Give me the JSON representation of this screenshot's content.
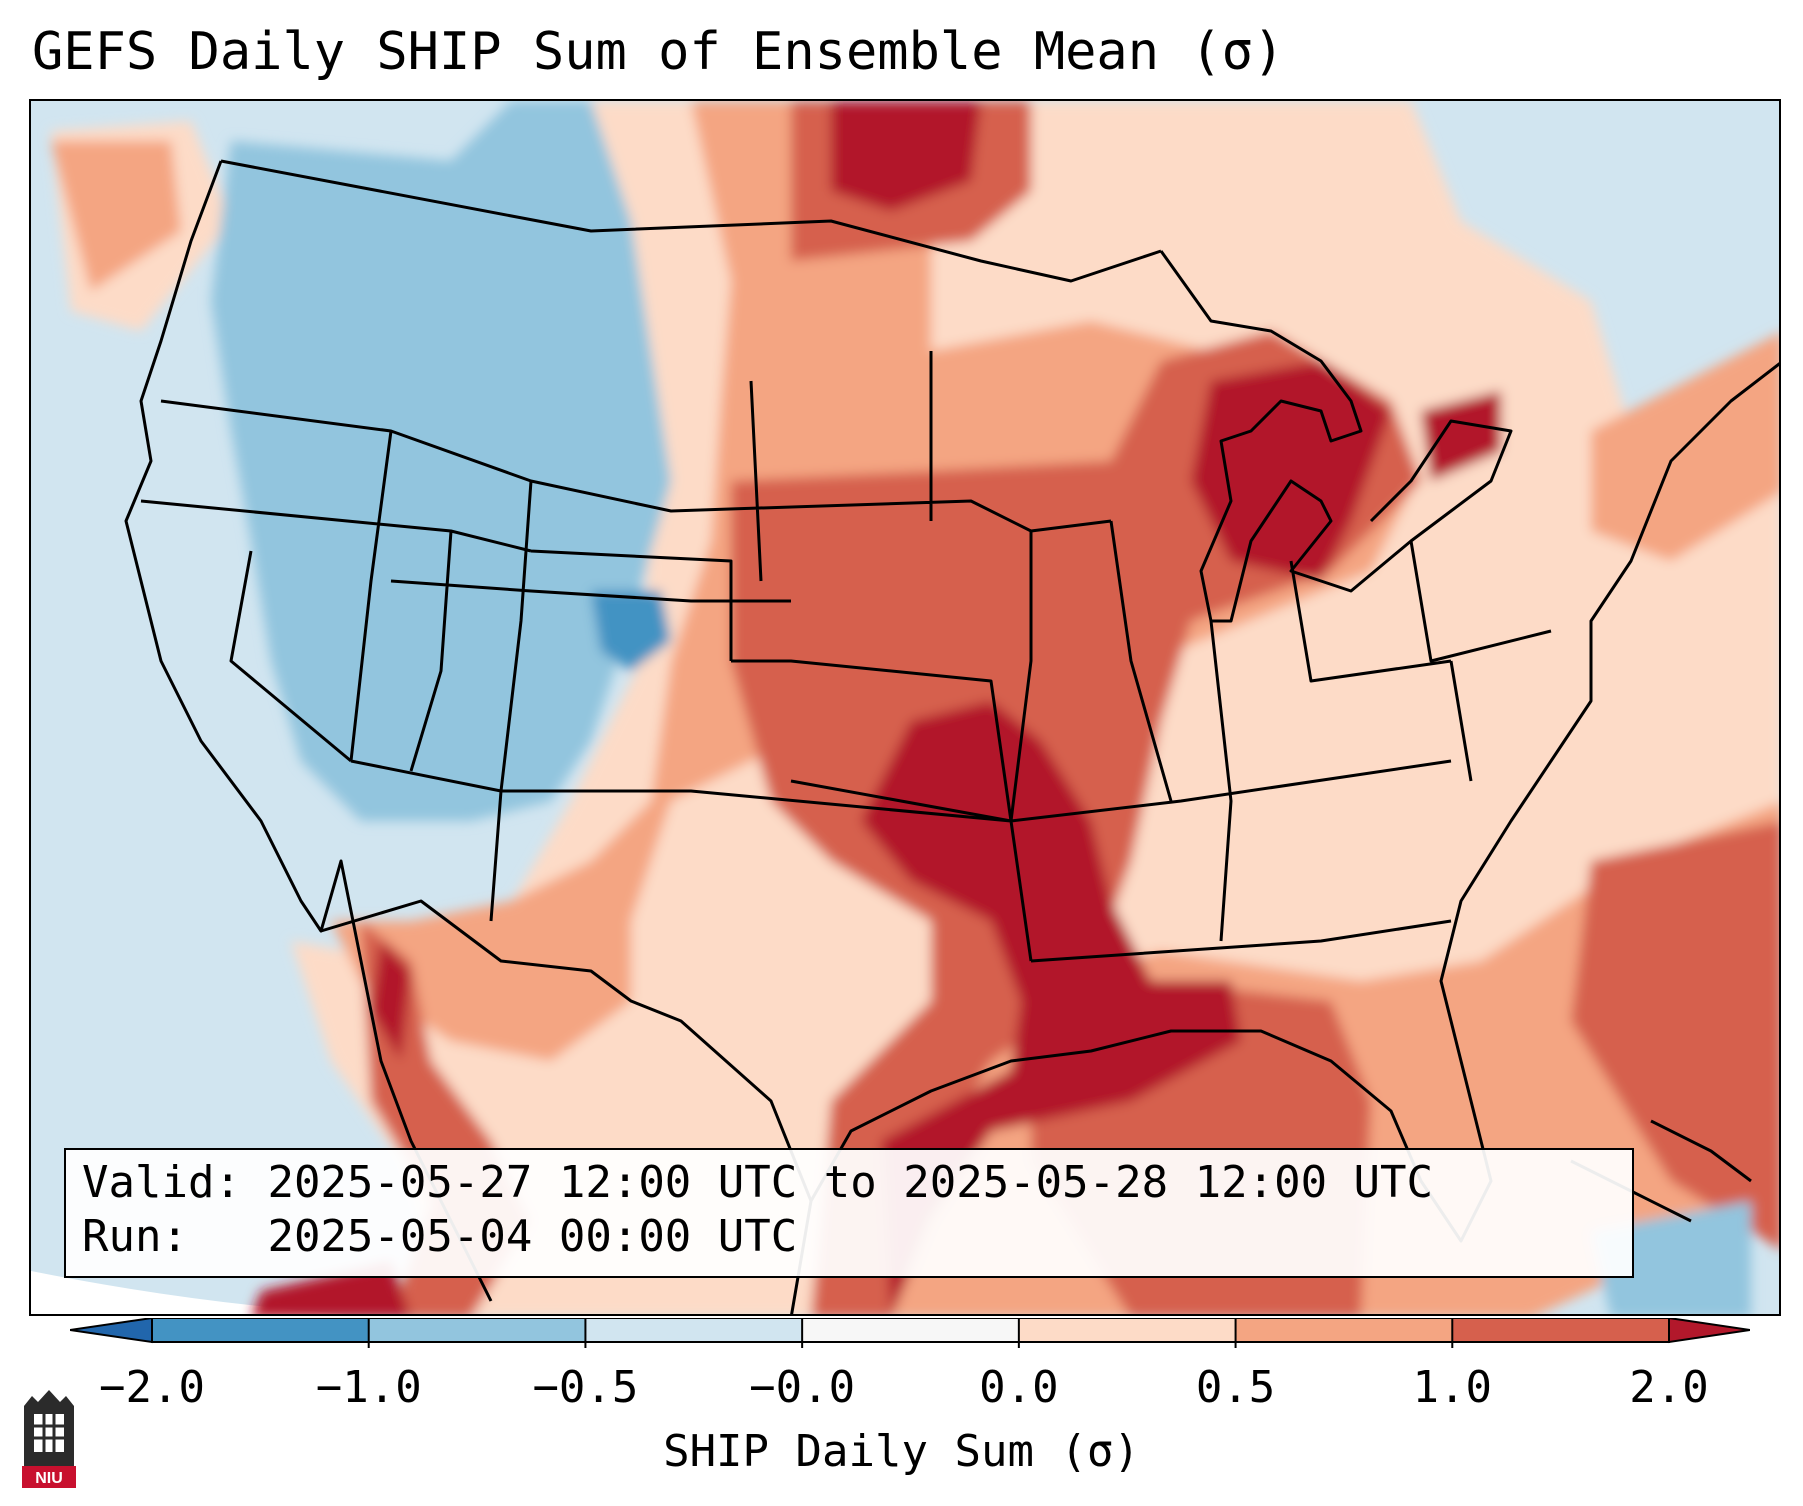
{
  "title": "GEFS Daily SHIP Sum of Ensemble Mean (σ)",
  "info": {
    "valid_label": "Valid:",
    "valid_text": "2025-05-27 12:00 UTC to 2025-05-28 12:00 UTC",
    "run_label": "Run:",
    "run_text": "2025-05-04 00:00 UTC"
  },
  "colorbar": {
    "label": "SHIP Daily Sum (σ)",
    "ticks": [
      "−2.0",
      "−1.0",
      "−0.5",
      "−0.0",
      "0.0",
      "0.5",
      "1.0",
      "2.0"
    ],
    "colors": [
      "#4393c3",
      "#92c5de",
      "#d1e5f0",
      "#f7f7f7",
      "#fddbc7",
      "#f4a582",
      "#d6604d",
      "#b2182b"
    ],
    "extend": "both"
  },
  "logo": {
    "text": "NIU"
  }
}
